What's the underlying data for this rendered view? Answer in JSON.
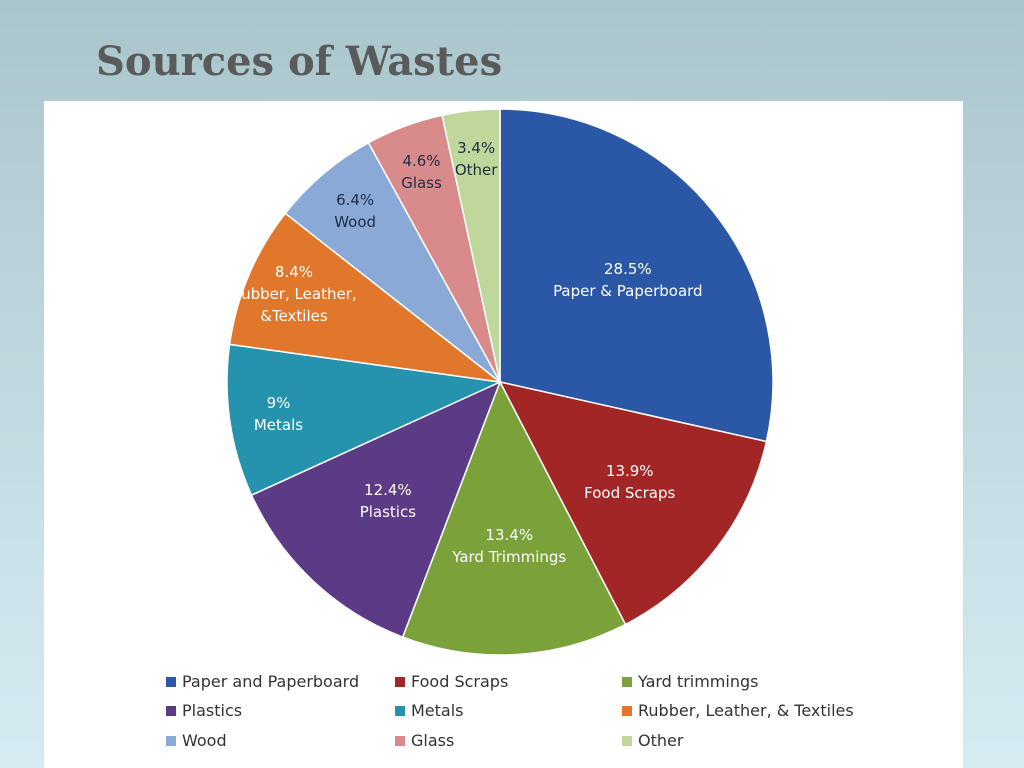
{
  "chart_data": {
    "type": "pie",
    "title": "Sources of Wastes",
    "categories": [
      "Paper and Paperboard",
      "Food Scraps",
      "Yard trimmings",
      "Plastics",
      "Metals",
      "Rubber, Leather, & Textiles",
      "Wood",
      "Glass",
      "Other"
    ],
    "slice_labels": [
      "Paper & Paperboard",
      "Food Scraps",
      "Yard Trimmings",
      "Plastics",
      "Metals",
      "Rubber, Leather, &Textiles",
      "Wood",
      "Glass",
      "Other"
    ],
    "values": [
      28.5,
      13.9,
      13.4,
      12.4,
      9,
      8.4,
      6.4,
      4.6,
      3.4
    ],
    "value_labels": [
      "28.5%",
      "13.9%",
      "13.4%",
      "12.4%",
      "9%",
      "8.4%",
      "6.4%",
      "4.6%",
      "3.4%"
    ],
    "colors": [
      "#2a58a6",
      "#a32626",
      "#7ba23a",
      "#5b3a86",
      "#2592ae",
      "#e0772a",
      "#8aa9d6",
      "#d98b8b",
      "#bfd79a"
    ],
    "legend": "bottom"
  }
}
